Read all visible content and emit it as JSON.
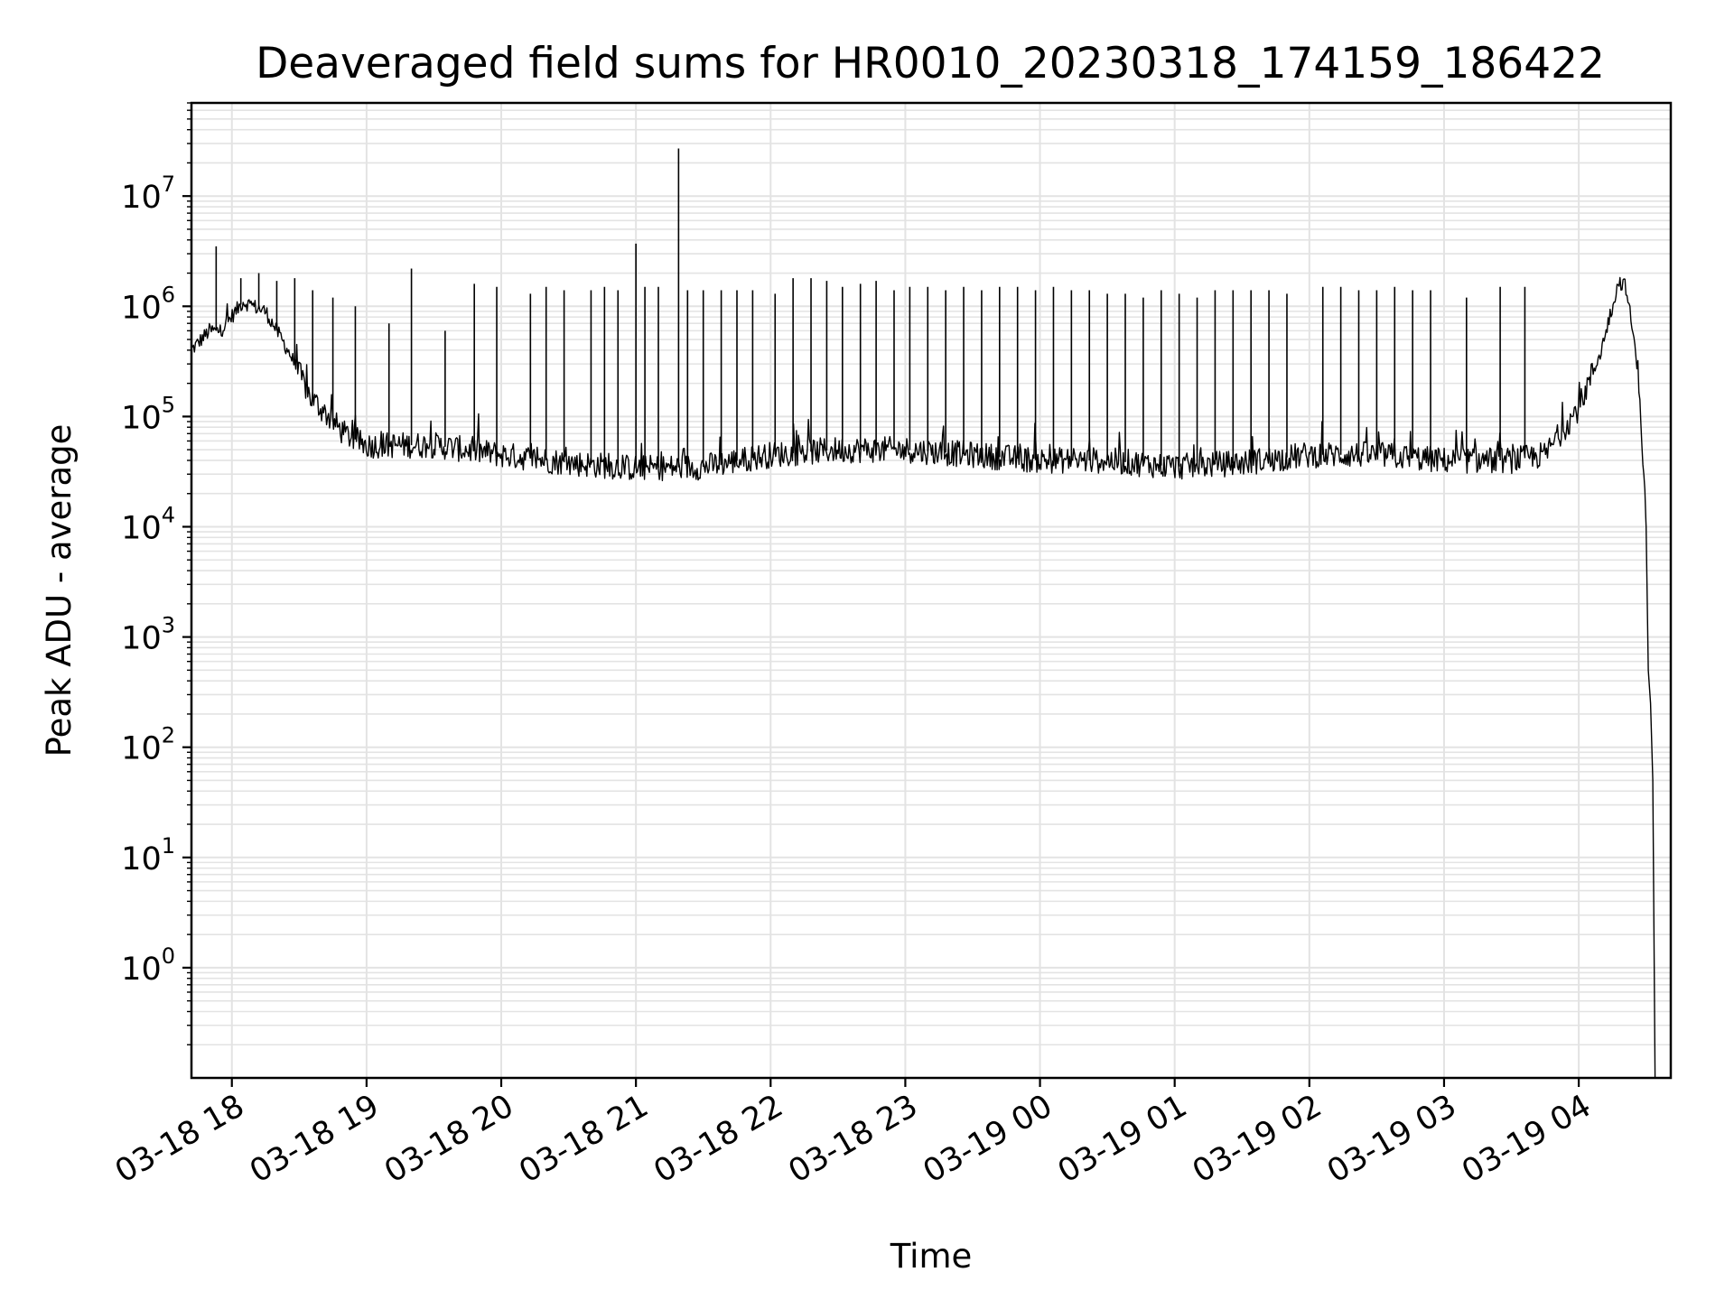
{
  "chart_data": {
    "type": "line",
    "title": "Deaveraged field sums for HR0010_20230318_174159_186422",
    "xlabel": "Time",
    "ylabel": "Peak ADU - average",
    "yscale": "log",
    "ylim": [
      0.1,
      70000000
    ],
    "xlim": [
      "2023-03-18 17:42",
      "2023-03-19 04:41"
    ],
    "grid": true,
    "line_color": "#000000",
    "grid_color": "#e3e3e3",
    "x_ticks": [
      "03-18 18",
      "03-18 19",
      "03-18 20",
      "03-18 21",
      "03-18 22",
      "03-18 23",
      "03-19 00",
      "03-19 01",
      "03-19 02",
      "03-19 03",
      "03-19 04"
    ],
    "x_tick_times": [
      "2023-03-18 18:00",
      "2023-03-18 19:00",
      "2023-03-18 20:00",
      "2023-03-18 21:00",
      "2023-03-18 22:00",
      "2023-03-18 23:00",
      "2023-03-19 00:00",
      "2023-03-19 01:00",
      "2023-03-19 02:00",
      "2023-03-19 03:00",
      "2023-03-19 04:00"
    ],
    "y_ticks": [
      {
        "value": 1,
        "base": "10",
        "exp": "0"
      },
      {
        "value": 10,
        "base": "10",
        "exp": "1"
      },
      {
        "value": 100,
        "base": "10",
        "exp": "2"
      },
      {
        "value": 1000,
        "base": "10",
        "exp": "3"
      },
      {
        "value": 10000,
        "base": "10",
        "exp": "4"
      },
      {
        "value": 100000,
        "base": "10",
        "exp": "5"
      },
      {
        "value": 1000000,
        "base": "10",
        "exp": "6"
      },
      {
        "value": 10000000,
        "base": "10",
        "exp": "7"
      }
    ],
    "series": [
      {
        "baseline": {
          "x": [
            "2023-03-18 17:42",
            "2023-03-18 17:50",
            "2023-03-18 17:55",
            "2023-03-18 18:05",
            "2023-03-18 18:15",
            "2023-03-18 18:25",
            "2023-03-18 18:35",
            "2023-03-18 18:50",
            "2023-03-18 19:00",
            "2023-03-18 19:30",
            "2023-03-18 20:00",
            "2023-03-18 20:30",
            "2023-03-18 21:00",
            "2023-03-18 21:30",
            "2023-03-18 22:00",
            "2023-03-18 22:30",
            "2023-03-18 23:00",
            "2023-03-18 23:30",
            "2023-03-19 00:00",
            "2023-03-19 00:30",
            "2023-03-19 01:00",
            "2023-03-19 01:30",
            "2023-03-19 02:00",
            "2023-03-19 02:30",
            "2023-03-19 03:00",
            "2023-03-19 03:30",
            "2023-03-19 03:45",
            "2023-03-19 04:00",
            "2023-03-19 04:10",
            "2023-03-19 04:15",
            "2023-03-19 04:18",
            "2023-03-19 04:21",
            "2023-03-19 04:24",
            "2023-03-19 04:27",
            "2023-03-19 04:30",
            "2023-03-19 04:31",
            "2023-03-19 04:32",
            "2023-03-19 04:33",
            "2023-03-19 04:34"
          ],
          "y": [
            400000,
            600000,
            600000,
            1100000,
            900000,
            400000,
            150000,
            70000,
            55000,
            55000,
            45000,
            38000,
            34000,
            35000,
            45000,
            50000,
            50000,
            45000,
            40000,
            40000,
            35000,
            38000,
            45000,
            45000,
            40000,
            40000,
            45000,
            120000,
            400000,
            1000000,
            1700000,
            1500000,
            600000,
            200000,
            10000,
            500,
            250,
            50,
            0.1
          ]
        },
        "spikes": {
          "x": [
            "2023-03-18 17:53",
            "2023-03-18 18:04",
            "2023-03-18 18:12",
            "2023-03-18 18:20",
            "2023-03-18 18:28",
            "2023-03-18 18:36",
            "2023-03-18 18:45",
            "2023-03-18 18:55",
            "2023-03-18 19:10",
            "2023-03-18 19:20",
            "2023-03-18 19:35",
            "2023-03-18 19:48",
            "2023-03-18 19:58",
            "2023-03-18 20:13",
            "2023-03-18 20:20",
            "2023-03-18 20:28",
            "2023-03-18 20:40",
            "2023-03-18 20:46",
            "2023-03-18 20:52",
            "2023-03-18 21:00",
            "2023-03-18 21:04",
            "2023-03-18 21:10",
            "2023-03-18 21:19",
            "2023-03-18 21:23",
            "2023-03-18 21:30",
            "2023-03-18 21:38",
            "2023-03-18 21:45",
            "2023-03-18 21:52",
            "2023-03-18 22:02",
            "2023-03-18 22:10",
            "2023-03-18 22:18",
            "2023-03-18 22:25",
            "2023-03-18 22:32",
            "2023-03-18 22:40",
            "2023-03-18 22:47",
            "2023-03-18 22:55",
            "2023-03-18 23:02",
            "2023-03-18 23:10",
            "2023-03-18 23:18",
            "2023-03-18 23:26",
            "2023-03-18 23:34",
            "2023-03-18 23:42",
            "2023-03-18 23:50",
            "2023-03-18 23:58",
            "2023-03-19 00:06",
            "2023-03-19 00:14",
            "2023-03-19 00:22",
            "2023-03-19 00:30",
            "2023-03-19 00:38",
            "2023-03-19 00:46",
            "2023-03-19 00:54",
            "2023-03-19 01:02",
            "2023-03-19 01:10",
            "2023-03-19 01:18",
            "2023-03-19 01:26",
            "2023-03-19 01:34",
            "2023-03-19 01:42",
            "2023-03-19 01:50",
            "2023-03-19 02:06",
            "2023-03-19 02:14",
            "2023-03-19 02:22",
            "2023-03-19 02:30",
            "2023-03-19 02:38",
            "2023-03-19 02:46",
            "2023-03-19 02:54",
            "2023-03-19 03:10",
            "2023-03-19 03:25",
            "2023-03-19 03:36"
          ],
          "y": [
            3500000,
            1800000,
            2000000,
            1700000,
            1800000,
            1400000,
            1200000,
            1000000,
            700000,
            2200000,
            600000,
            1600000,
            1500000,
            1300000,
            1500000,
            1400000,
            1400000,
            1500000,
            1400000,
            3700000,
            1500000,
            1500000,
            27000000,
            1400000,
            1400000,
            1400000,
            1400000,
            1400000,
            1300000,
            1800000,
            1800000,
            1700000,
            1500000,
            1600000,
            1700000,
            1400000,
            1500000,
            1500000,
            1400000,
            1500000,
            1400000,
            1500000,
            1500000,
            1400000,
            1500000,
            1400000,
            1400000,
            1300000,
            1300000,
            1200000,
            1400000,
            1300000,
            1200000,
            1400000,
            1400000,
            1400000,
            1400000,
            1300000,
            1500000,
            1500000,
            1400000,
            1400000,
            1500000,
            1400000,
            1400000,
            1200000,
            1500000,
            1500000
          ]
        }
      }
    ]
  }
}
